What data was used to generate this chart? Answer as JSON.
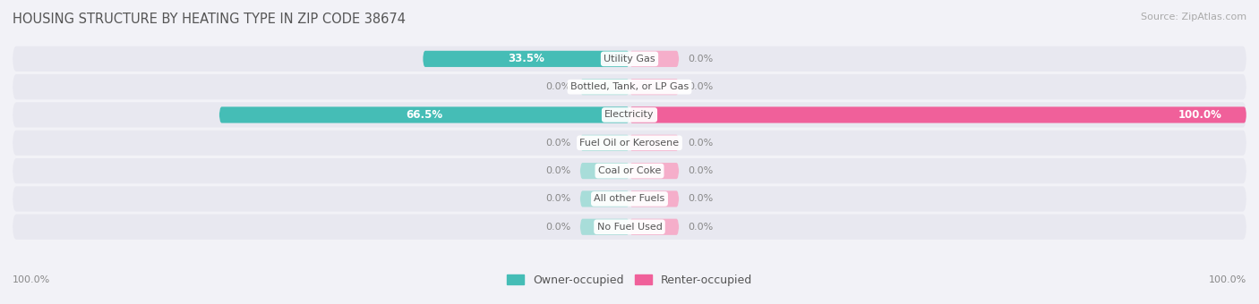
{
  "title": "HOUSING STRUCTURE BY HEATING TYPE IN ZIP CODE 38674",
  "source": "Source: ZipAtlas.com",
  "categories": [
    "Utility Gas",
    "Bottled, Tank, or LP Gas",
    "Electricity",
    "Fuel Oil or Kerosene",
    "Coal or Coke",
    "All other Fuels",
    "No Fuel Used"
  ],
  "owner_values": [
    33.5,
    0.0,
    66.5,
    0.0,
    0.0,
    0.0,
    0.0
  ],
  "renter_values": [
    0.0,
    0.0,
    100.0,
    0.0,
    0.0,
    0.0,
    0.0
  ],
  "owner_color": "#45BDB6",
  "owner_placeholder_color": "#A8DDD9",
  "renter_color": "#F0609A",
  "renter_placeholder_color": "#F5AECA",
  "owner_label": "Owner-occupied",
  "renter_label": "Renter-occupied",
  "bg_color": "#f2f2f7",
  "row_bg_color": "#e8e8f0",
  "title_color": "#555555",
  "value_label_inside_color": "#ffffff",
  "value_label_outside_color": "#888888",
  "category_label_color": "#555555",
  "placeholder_bar_width": 8.0,
  "xlim": 100,
  "figsize": [
    14.06,
    3.4
  ],
  "dpi": 100,
  "source_color": "#aaaaaa"
}
